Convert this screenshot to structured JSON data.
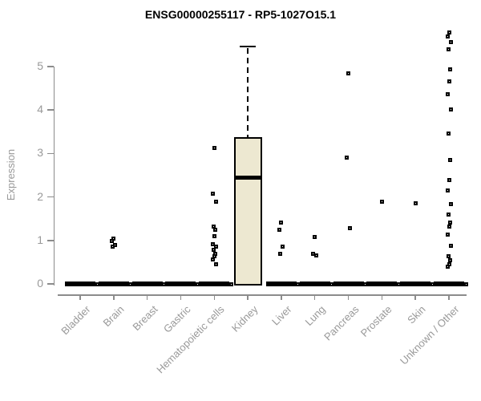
{
  "chart_data": {
    "type": "boxplot",
    "title": "ENSG00000255117 - RP5-1027O15.1",
    "ylabel": "Expression",
    "xlabel": "",
    "ylim": [
      0,
      5.9
    ],
    "yticks": [
      0,
      1,
      2,
      3,
      4,
      5
    ],
    "grid": false,
    "legend": false,
    "categories": [
      "Bladder",
      "Brain",
      "Breast",
      "Gastric",
      "Hematopoietic cells",
      "Kidney",
      "Liver",
      "Lung",
      "Pancreas",
      "Prostate",
      "Skin",
      "Unknown / Other"
    ],
    "series": [
      {
        "category": "Bladder",
        "q1": 0,
        "median": 0,
        "q3": 0,
        "whisker_low": 0,
        "whisker_high": 0,
        "points": [
          0
        ]
      },
      {
        "category": "Brain",
        "q1": 0,
        "median": 0,
        "q3": 0,
        "whisker_low": 0,
        "whisker_high": 0,
        "points": [
          1.05,
          0.98,
          0.9,
          0.85,
          0
        ]
      },
      {
        "category": "Breast",
        "q1": 0,
        "median": 0,
        "q3": 0,
        "whisker_low": 0,
        "whisker_high": 0,
        "points": [
          0
        ]
      },
      {
        "category": "Gastric",
        "q1": 0,
        "median": 0,
        "q3": 0,
        "whisker_low": 0,
        "whisker_high": 0,
        "points": [
          0
        ]
      },
      {
        "category": "Hematopoietic cells",
        "q1": 0,
        "median": 0,
        "q3": 0,
        "whisker_low": 0,
        "whisker_high": 0,
        "points": [
          3.12,
          2.08,
          1.9,
          1.32,
          1.25,
          1.1,
          0.92,
          0.85,
          0.78,
          0.7,
          0.63,
          0.56,
          0.45,
          0
        ]
      },
      {
        "category": "Kidney",
        "q1": 0,
        "median": 2.45,
        "q3": 3.37,
        "whisker_low": 0,
        "whisker_high": 5.47,
        "points": []
      },
      {
        "category": "Liver",
        "q1": 0,
        "median": 0,
        "q3": 0,
        "whisker_low": 0,
        "whisker_high": 0,
        "points": [
          1.42,
          1.24,
          0.86,
          0.7,
          0
        ]
      },
      {
        "category": "Lung",
        "q1": 0,
        "median": 0,
        "q3": 0,
        "whisker_low": 0,
        "whisker_high": 0,
        "points": [
          1.08,
          0.7,
          0.65,
          0
        ]
      },
      {
        "category": "Pancreas",
        "q1": 0,
        "median": 0,
        "q3": 0,
        "whisker_low": 0,
        "whisker_high": 0,
        "points": [
          4.84,
          2.91,
          1.28,
          0
        ]
      },
      {
        "category": "Prostate",
        "q1": 0,
        "median": 0,
        "q3": 0,
        "whisker_low": 0,
        "whisker_high": 0,
        "points": [
          1.89,
          0
        ]
      },
      {
        "category": "Skin",
        "q1": 0,
        "median": 0,
        "q3": 0,
        "whisker_low": 0,
        "whisker_high": 0,
        "points": [
          1.86,
          0
        ]
      },
      {
        "category": "Unknown / Other",
        "q1": 0,
        "median": 0,
        "q3": 0,
        "whisker_low": 0,
        "whisker_high": 0,
        "points": [
          5.78,
          5.7,
          5.57,
          5.39,
          4.93,
          4.65,
          4.36,
          4.01,
          3.46,
          2.85,
          2.39,
          2.15,
          1.84,
          1.6,
          1.42,
          1.32,
          1.14,
          0.88,
          0.64,
          0.55,
          0.46,
          0.4,
          0
        ]
      }
    ],
    "colors": {
      "box_fill": "#EDE8D1",
      "box_border": "#000000",
      "median": "#000000",
      "point": "#000000",
      "axis": "#8C8C8C",
      "label": "#999999",
      "title": "#000000",
      "background": "#FFFFFF"
    }
  }
}
